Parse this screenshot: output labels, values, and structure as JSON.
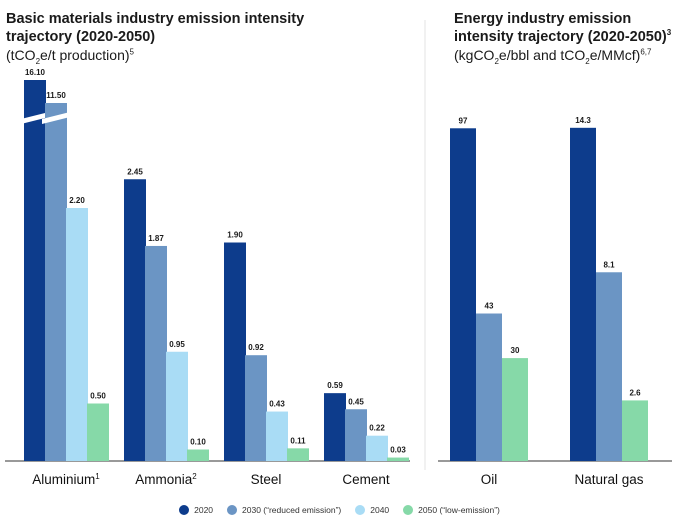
{
  "titles": {
    "left": {
      "title": "Basic materials industry emission intensity trajectory (2020-2050)",
      "unit_pre": "(tCO",
      "unit_sub": "2",
      "unit_post": "e/t production)",
      "unit_sup": "5"
    },
    "right": {
      "title": "Energy industry emission intensity trajectory (2020-2050)",
      "title_sup": "3",
      "unit_pre": "(kgCO",
      "unit_sub1": "2",
      "unit_mid": "e/bbl and tCO",
      "unit_sub2": "2",
      "unit_post": "e/MMcf)",
      "unit_sup": "6,7"
    }
  },
  "legend": [
    {
      "label": "2020",
      "color": "#0d3c8c"
    },
    {
      "label": "2030 (“reduced emission”)",
      "color": "#6b95c4"
    },
    {
      "label": "2040",
      "color": "#a9dcf5"
    },
    {
      "label": "2050 (“low-emission”)",
      "color": "#86d9a8"
    }
  ],
  "chart_data": [
    {
      "type": "bar",
      "title": "Basic materials industry emission intensity trajectory (2020-2050)",
      "ylabel": "tCO2e/t production",
      "axis_break": true,
      "categories": [
        "Aluminium",
        "Ammonia",
        "Steel",
        "Cement"
      ],
      "category_sups": [
        "1",
        "2",
        "",
        ""
      ],
      "series": [
        {
          "name": "2020",
          "values": [
            16.1,
            2.45,
            1.9,
            0.59
          ],
          "labels": [
            "16.10",
            "2.45",
            "1.90",
            "0.59"
          ]
        },
        {
          "name": "2030 (“reduced emission”)",
          "values": [
            11.5,
            1.87,
            0.92,
            0.45
          ],
          "labels": [
            "11.50",
            "1.87",
            "0.92",
            "0.45"
          ]
        },
        {
          "name": "2040",
          "values": [
            2.2,
            0.95,
            0.43,
            0.22
          ],
          "labels": [
            "2.20",
            "0.95",
            "0.43",
            "0.22"
          ]
        },
        {
          "name": "2050 (“low-emission”)",
          "values": [
            0.5,
            0.1,
            0.11,
            0.03
          ],
          "labels": [
            "0.50",
            "0.10",
            "0.11",
            "0.03"
          ]
        }
      ]
    },
    {
      "type": "bar",
      "title": "Energy industry emission intensity trajectory (2020-2050)",
      "ylabel": "kgCO2e/bbl and tCO2e/MMcf",
      "categories": [
        "Oil",
        "Natural gas"
      ],
      "category_sups": [
        "",
        ""
      ],
      "series": [
        {
          "name": "2020",
          "values": [
            97,
            14.3
          ],
          "labels": [
            "97",
            "14.3"
          ]
        },
        {
          "name": "2030 (“reduced emission”)",
          "values": [
            43,
            8.1
          ],
          "labels": [
            "43",
            "8.1"
          ]
        },
        {
          "name": "2050 (“low-emission”)",
          "values": [
            30,
            2.6
          ],
          "labels": [
            "30",
            "2.6"
          ]
        }
      ]
    }
  ]
}
